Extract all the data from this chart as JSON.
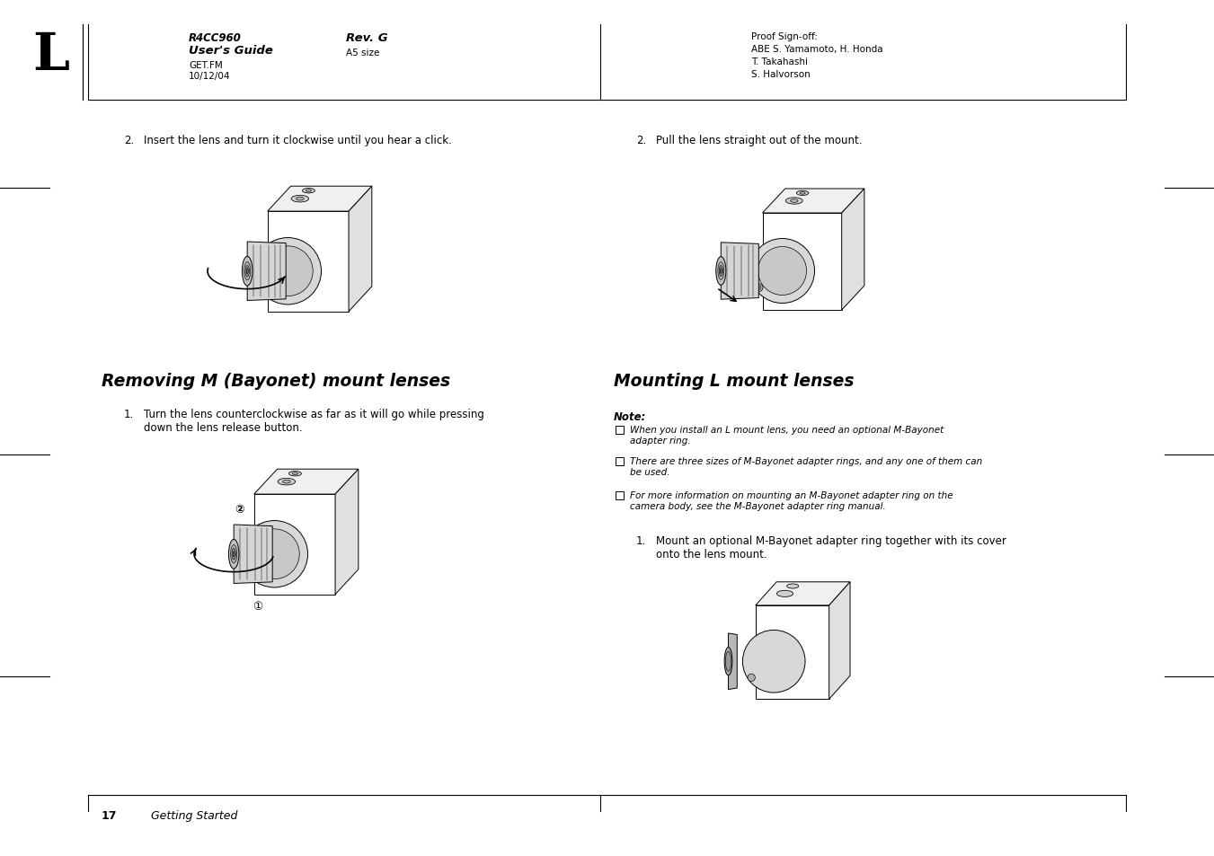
{
  "page_bg": "#ffffff",
  "header": {
    "left_letter": "L",
    "product_line1": "R4CC960",
    "product_line2": "User's Guide",
    "product_line3": "GET.FM",
    "product_line4": "10/12/04",
    "rev_line1": "Rev. G",
    "rev_line2": "A5 size",
    "proof_line1": "Proof Sign-off:",
    "proof_line2": "ABE S. Yamamoto, H. Honda",
    "proof_line3": "T. Takahashi",
    "proof_line4": "S. Halvorson"
  },
  "footer": {
    "page_num": "17",
    "section": "Getting Started"
  },
  "left_col": {
    "step2_label": "2.",
    "step2_text": "Insert the lens and turn it clockwise until you hear a click.",
    "section_title": "Removing M (Bayonet) mount lenses",
    "step1_label": "1.",
    "step1_text": "Turn the lens counterclockwise as far as it will go while pressing\ndown the lens release button."
  },
  "right_col": {
    "step2_label": "2.",
    "step2_text": "Pull the lens straight out of the mount.",
    "section_title": "Mounting L mount lenses",
    "note_label": "Note:",
    "note_items": [
      "When you install an L mount lens, you need an optional M-Bayonet\nadapter ring.",
      "There are three sizes of M-Bayonet adapter rings, and any one of them can\nbe used.",
      "For more information on mounting an M-Bayonet adapter ring on the\ncamera body, see the M-Bayonet adapter ring manual."
    ],
    "step1_label": "1.",
    "step1_text": "Mount an optional M-Bayonet adapter ring together with its cover\nonto the lens mount."
  }
}
